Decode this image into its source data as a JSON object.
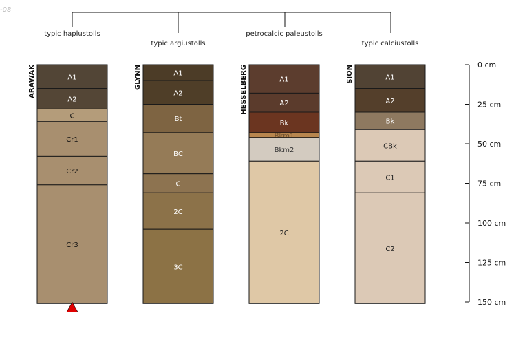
{
  "corner_label": "-08",
  "colors": {
    "line": "#111111",
    "marker": "#e00000"
  },
  "depth_scale": {
    "max_cm": 150,
    "ticks": [
      {
        "depth": 0,
        "label": "0 cm"
      },
      {
        "depth": 25,
        "label": "25 cm"
      },
      {
        "depth": 50,
        "label": "50 cm"
      },
      {
        "depth": 75,
        "label": "75 cm"
      },
      {
        "depth": 100,
        "label": "100 cm"
      },
      {
        "depth": 125,
        "label": "125 cm"
      },
      {
        "depth": 150,
        "label": "150 cm"
      }
    ]
  },
  "profiles": [
    {
      "name": "ARAWAK",
      "taxon": "typic haplustolls",
      "marker": "red-triangle",
      "horizons": [
        {
          "name": "A1",
          "top": 0,
          "bottom": 15,
          "color": "#524536",
          "text": "#ffffff"
        },
        {
          "name": "A2",
          "top": 15,
          "bottom": 28,
          "color": "#544636",
          "text": "#ffffff"
        },
        {
          "name": "C",
          "top": 28,
          "bottom": 36,
          "color": "#b49c7a",
          "text": "#111111"
        },
        {
          "name": "Cr1",
          "top": 36,
          "bottom": 58,
          "color": "#a88f6f",
          "text": "#111111"
        },
        {
          "name": "Cr2",
          "top": 58,
          "bottom": 76,
          "color": "#a88f6f",
          "text": "#111111"
        },
        {
          "name": "Cr3",
          "top": 76,
          "bottom": 151,
          "color": "#a88f6f",
          "text": "#111111"
        }
      ]
    },
    {
      "name": "GLYNN",
      "taxon": "typic argiustolls",
      "marker": "",
      "horizons": [
        {
          "name": "A1",
          "top": 0,
          "bottom": 10,
          "color": "#4c3c27",
          "text": "#ffffff"
        },
        {
          "name": "A2",
          "top": 10,
          "bottom": 25,
          "color": "#4f3e28",
          "text": "#ffffff"
        },
        {
          "name": "Bt",
          "top": 25,
          "bottom": 43,
          "color": "#7e6442",
          "text": "#ffffff"
        },
        {
          "name": "BC",
          "top": 43,
          "bottom": 69,
          "color": "#957b57",
          "text": "#ffffff"
        },
        {
          "name": "C",
          "top": 69,
          "bottom": 81,
          "color": "#8d7350",
          "text": "#ffffff"
        },
        {
          "name": "2C",
          "top": 81,
          "bottom": 104,
          "color": "#8c7249",
          "text": "#ffffff"
        },
        {
          "name": "3C",
          "top": 104,
          "bottom": 151,
          "color": "#8c7245",
          "text": "#ffffff"
        }
      ]
    },
    {
      "name": "HESSELBERG",
      "taxon": "petrocalcic paleustolls",
      "marker": "",
      "horizons": [
        {
          "name": "A1",
          "top": 0,
          "bottom": 18,
          "color": "#5c3d2e",
          "text": "#ffffff"
        },
        {
          "name": "A2",
          "top": 18,
          "bottom": 30,
          "color": "#5b3b2c",
          "text": "#ffffff"
        },
        {
          "name": "Bk",
          "top": 30,
          "bottom": 43,
          "color": "#6b3520",
          "text": "#ffffff"
        },
        {
          "name": "Bkm1",
          "top": 43,
          "bottom": 46,
          "color": "#b8864e",
          "text": "#6b4e2e"
        },
        {
          "name": "Bkm2",
          "top": 46,
          "bottom": 61,
          "color": "#d3cbc0",
          "text": "#333333"
        },
        {
          "name": "2C",
          "top": 61,
          "bottom": 151,
          "color": "#dfc8a6",
          "text": "#222222"
        }
      ]
    },
    {
      "name": "SION",
      "taxon": "typic calciustolls",
      "marker": "",
      "horizons": [
        {
          "name": "A1",
          "top": 0,
          "bottom": 15,
          "color": "#514334",
          "text": "#ffffff"
        },
        {
          "name": "A2",
          "top": 15,
          "bottom": 30,
          "color": "#543f2b",
          "text": "#ffffff"
        },
        {
          "name": "Bk",
          "top": 30,
          "bottom": 41,
          "color": "#8e7960",
          "text": "#ffffff"
        },
        {
          "name": "CBk",
          "top": 41,
          "bottom": 61,
          "color": "#dcc9b6",
          "text": "#222222"
        },
        {
          "name": "C1",
          "top": 61,
          "bottom": 81,
          "color": "#dcc9b6",
          "text": "#222222"
        },
        {
          "name": "C2",
          "top": 81,
          "bottom": 151,
          "color": "#dcc9b6",
          "text": "#222222"
        }
      ]
    }
  ]
}
